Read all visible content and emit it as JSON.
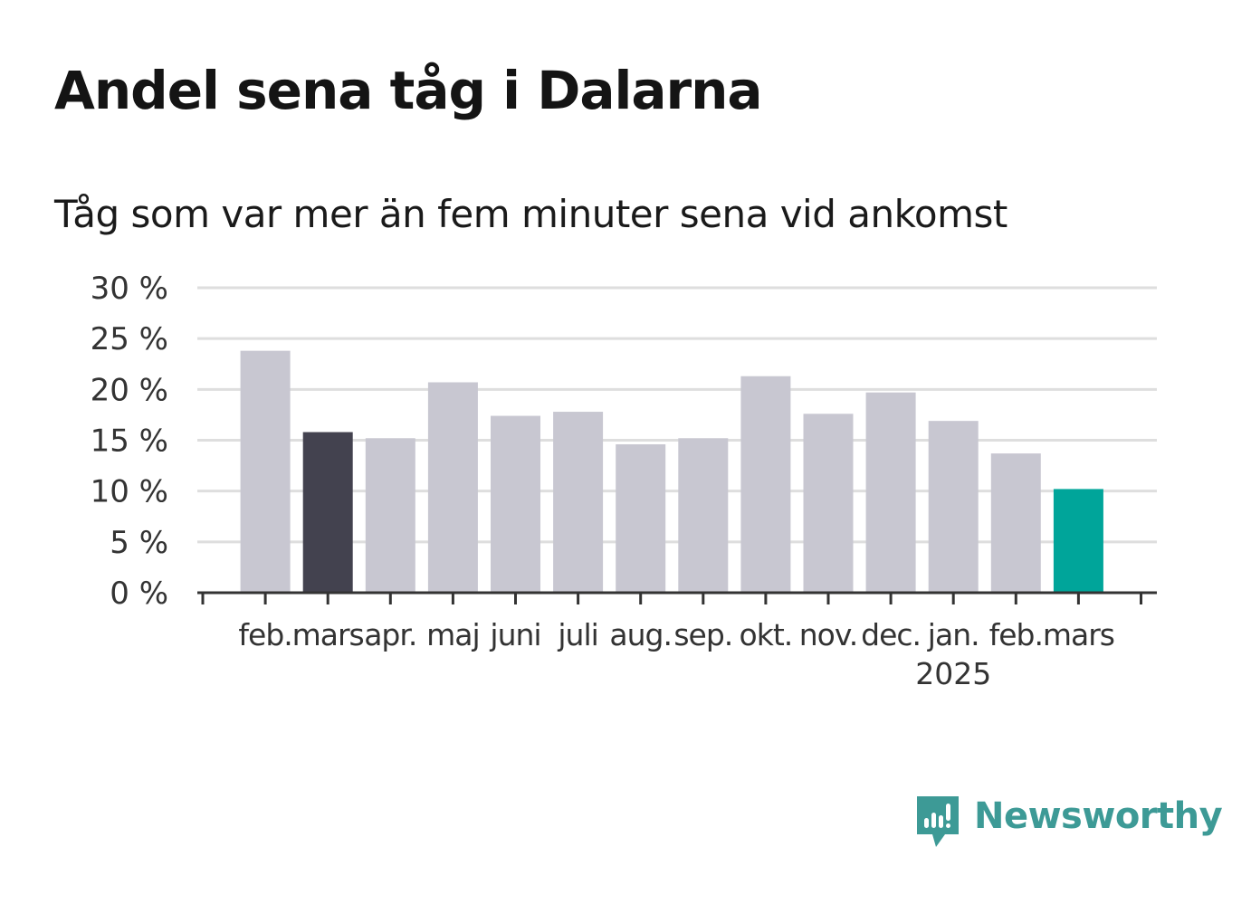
{
  "title": "Andel sena tåg i Dalarna",
  "subtitle": "Tåg som var mer än fem minuter sena vid ankomst",
  "brand": {
    "name": "Newsworthy",
    "icon": "newsworthy-logo-icon",
    "color": "#3d9a96"
  },
  "chart_data": {
    "type": "bar",
    "categories": [
      "feb.",
      "mars",
      "apr.",
      "maj",
      "juni",
      "juli",
      "aug.",
      "sep.",
      "okt.",
      "nov.",
      "dec.",
      "jan.",
      "feb.",
      "mars"
    ],
    "year_labels": [
      {
        "index": 11,
        "text": "2025"
      }
    ],
    "values": [
      23.8,
      15.8,
      15.2,
      20.7,
      17.4,
      17.8,
      14.6,
      15.2,
      21.3,
      17.6,
      19.7,
      16.9,
      13.7,
      10.2
    ],
    "highlight": {
      "1": "#43424f",
      "13": "#00a59a"
    },
    "bar_color": "#c8c7d1",
    "ylim": [
      0,
      30
    ],
    "yticks": [
      0,
      5,
      10,
      15,
      20,
      25,
      30
    ],
    "ytick_labels": [
      "0 %",
      "5 %",
      "10 %",
      "15 %",
      "20 %",
      "25 %",
      "30 %"
    ],
    "grid": true,
    "xlabel": "",
    "ylabel": ""
  }
}
